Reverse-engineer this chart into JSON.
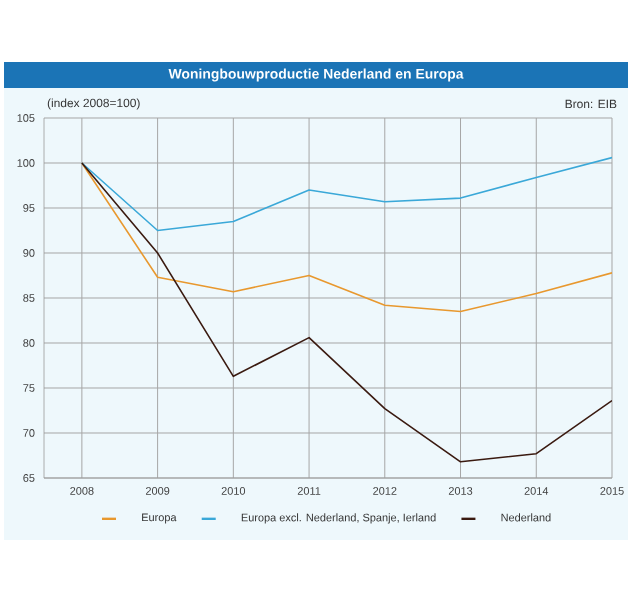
{
  "chart_data": {
    "type": "line",
    "title": "Woningbouwproductie Nederland en Europa",
    "subtitle": "(index 2008=100)",
    "annotations": [
      "Bron: EIB"
    ],
    "x": [
      2008,
      2009,
      2010,
      2011,
      2012,
      2013,
      2014,
      2015
    ],
    "series": [
      {
        "name": "Europa",
        "color": "#e8982e",
        "values": [
          100,
          87.3,
          85.7,
          87.5,
          84.2,
          83.5,
          85.5,
          87.8
        ]
      },
      {
        "name": "Europa excl. Nederland, Spanje, Ierland",
        "color": "#3aa8d8",
        "values": [
          100,
          92.5,
          93.5,
          97,
          95.7,
          96.1,
          98.4,
          100.6
        ]
      },
      {
        "name": "Nederland",
        "color": "#3a1a10",
        "values": [
          100,
          90,
          76.3,
          80.6,
          72.7,
          66.8,
          67.7,
          73.6
        ]
      }
    ],
    "xlim": [
      2007.5,
      2015
    ],
    "xticks": [
      2008,
      2009,
      2010,
      2011,
      2012,
      2013,
      2014,
      2015
    ],
    "ylim": [
      65,
      105
    ],
    "yticks": [
      65,
      70,
      75,
      80,
      85,
      90,
      95,
      100,
      105
    ],
    "grid": true,
    "legend": "bottom",
    "marker": "none",
    "line_style": "solid"
  }
}
